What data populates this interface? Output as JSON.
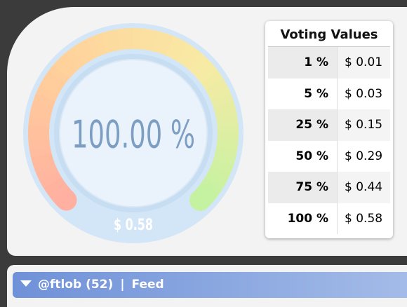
{
  "gauge": {
    "value_text": "100.00 %",
    "amount": "$ 0.58"
  },
  "table": {
    "title": "Voting Values",
    "rows": [
      [
        "1 %",
        "$ 0.01"
      ],
      [
        "5 %",
        "$ 0.03"
      ],
      [
        "25 %",
        "$ 0.15"
      ],
      [
        "50 %",
        "$ 0.29"
      ],
      [
        "75 %",
        "$ 0.44"
      ],
      [
        "100 %",
        "$ 0.58"
      ]
    ]
  },
  "footer": {
    "account": "@ftlob (52)",
    "separator": "|",
    "tab": "Feed"
  }
}
